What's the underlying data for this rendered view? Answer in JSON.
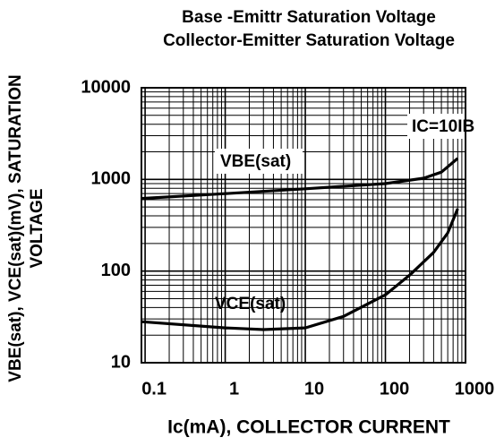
{
  "chart_data": {
    "type": "line",
    "title": [
      "Base -Emittr Saturation Voltage",
      "Collector-Emitter Saturation Voltage"
    ],
    "x_label": "Ic(mA), COLLECTOR CURRENT",
    "y_label": [
      "VBE(sat),  VCE(sat)(mV), SATURATION",
      "VOLTAGE"
    ],
    "annotations": [
      "IC=10IB",
      "VBE(sat)",
      "VCE(sat)"
    ],
    "log_x": true,
    "log_y": true,
    "grid": true,
    "xlim": [
      0.09,
      1000
    ],
    "xticks": [
      0.1,
      1,
      10,
      100,
      1000
    ],
    "ylim": [
      10,
      10000
    ],
    "yticks": [
      10,
      100,
      1000,
      10000
    ],
    "series": [
      {
        "name": "VBE(sat)",
        "color": "#000000",
        "x": [
          0.09,
          1,
          10,
          100,
          300,
          500,
          800
        ],
        "values": [
          620,
          700,
          790,
          900,
          1030,
          1200,
          1700
        ]
      },
      {
        "name": "VCE(sat)",
        "color": "#000000",
        "x": [
          0.09,
          1,
          3,
          10,
          30,
          100,
          200,
          400,
          600,
          800
        ],
        "values": [
          28,
          24,
          23,
          24,
          32,
          55,
          90,
          160,
          260,
          480
        ]
      }
    ]
  }
}
